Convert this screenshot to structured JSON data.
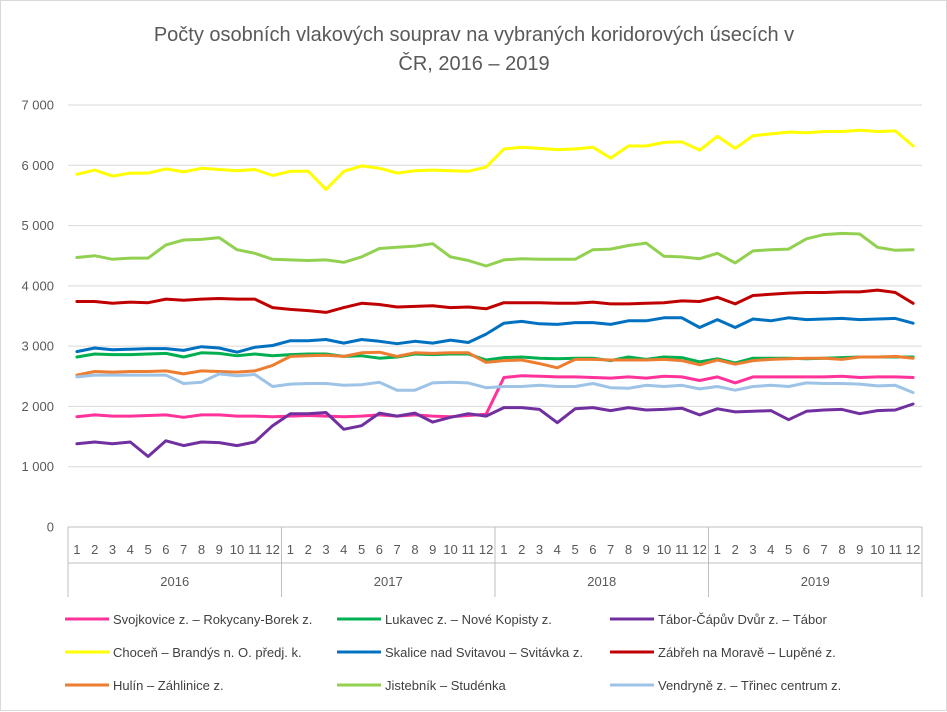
{
  "chart_data": {
    "type": "line",
    "title_lines": [
      "Počty osobních vlakových souprav na vybraných koridorových úsecích v",
      "ČR, 2016 – 2019"
    ],
    "xlabel": "",
    "ylabel": "",
    "ylim": [
      0,
      7000
    ],
    "yticks": [
      0,
      1000,
      2000,
      3000,
      4000,
      5000,
      6000,
      7000
    ],
    "ytick_labels": [
      "0",
      "1 000",
      "2 000",
      "3 000",
      "4 000",
      "5 000",
      "6 000",
      "7 000"
    ],
    "months": [
      "1",
      "2",
      "3",
      "4",
      "5",
      "6",
      "7",
      "8",
      "9",
      "10",
      "11",
      "12",
      "1",
      "2",
      "3",
      "4",
      "5",
      "6",
      "7",
      "8",
      "9",
      "10",
      "11",
      "12",
      "1",
      "2",
      "3",
      "4",
      "5",
      "6",
      "7",
      "8",
      "9",
      "10",
      "11",
      "12",
      "1",
      "2",
      "3",
      "4",
      "5",
      "6",
      "7",
      "8",
      "9",
      "10",
      "11",
      "12"
    ],
    "years": [
      "2016",
      "2017",
      "2018",
      "2019"
    ],
    "grid": true,
    "legend_position": "bottom",
    "series": [
      {
        "name": "Svojkovice z. – Rokycany-Borek z.",
        "color": "#ff3399",
        "values": [
          1830,
          1860,
          1840,
          1840,
          1850,
          1860,
          1820,
          1860,
          1860,
          1840,
          1840,
          1830,
          1840,
          1850,
          1840,
          1830,
          1840,
          1860,
          1840,
          1860,
          1840,
          1830,
          1850,
          1870,
          2480,
          2510,
          2500,
          2490,
          2490,
          2480,
          2470,
          2490,
          2470,
          2500,
          2490,
          2430,
          2490,
          2390,
          2490,
          2490,
          2490,
          2490,
          2490,
          2500,
          2480,
          2490,
          2490,
          2480
        ]
      },
      {
        "name": "Lukavec z. – Nové Kopisty z.",
        "color": "#00b050",
        "values": [
          2820,
          2870,
          2860,
          2860,
          2870,
          2880,
          2820,
          2890,
          2880,
          2840,
          2870,
          2840,
          2860,
          2870,
          2870,
          2830,
          2840,
          2800,
          2820,
          2870,
          2860,
          2870,
          2870,
          2770,
          2810,
          2820,
          2800,
          2790,
          2800,
          2800,
          2760,
          2820,
          2780,
          2820,
          2810,
          2740,
          2790,
          2720,
          2800,
          2800,
          2800,
          2790,
          2800,
          2810,
          2820,
          2820,
          2820,
          2820
        ]
      },
      {
        "name": "Tábor-Čápův Dvůr z. – Tábor",
        "color": "#7030a0",
        "values": [
          1380,
          1410,
          1380,
          1410,
          1170,
          1430,
          1350,
          1410,
          1400,
          1350,
          1410,
          1680,
          1880,
          1880,
          1900,
          1620,
          1680,
          1890,
          1840,
          1890,
          1740,
          1820,
          1880,
          1840,
          1980,
          1980,
          1950,
          1730,
          1960,
          1980,
          1930,
          1980,
          1940,
          1950,
          1970,
          1860,
          1960,
          1910,
          1920,
          1930,
          1780,
          1920,
          1940,
          1950,
          1880,
          1930,
          1940,
          2040
        ]
      },
      {
        "name": "Choceň – Brandýs n. O. předj. k.",
        "color": "#ffff00",
        "values": [
          5850,
          5920,
          5820,
          5870,
          5870,
          5940,
          5890,
          5950,
          5930,
          5910,
          5930,
          5830,
          5900,
          5900,
          5600,
          5900,
          5990,
          5950,
          5870,
          5910,
          5920,
          5910,
          5900,
          5970,
          6270,
          6300,
          6280,
          6260,
          6270,
          6300,
          6120,
          6320,
          6320,
          6380,
          6390,
          6250,
          6480,
          6280,
          6490,
          6520,
          6550,
          6540,
          6560,
          6560,
          6580,
          6560,
          6570,
          6320
        ]
      },
      {
        "name": "Skalice nad Svitavou – Svitávka z.",
        "color": "#0070c0",
        "values": [
          2910,
          2970,
          2940,
          2950,
          2960,
          2960,
          2930,
          2990,
          2970,
          2900,
          2980,
          3010,
          3090,
          3090,
          3110,
          3050,
          3110,
          3080,
          3040,
          3080,
          3050,
          3100,
          3060,
          3200,
          3380,
          3410,
          3370,
          3360,
          3390,
          3390,
          3360,
          3420,
          3420,
          3470,
          3470,
          3310,
          3440,
          3310,
          3450,
          3420,
          3470,
          3440,
          3450,
          3460,
          3440,
          3450,
          3460,
          3380
        ]
      },
      {
        "name": "Zábřeh na Moravě – Lupěné z.",
        "color": "#c00000",
        "values": [
          3740,
          3740,
          3710,
          3730,
          3720,
          3780,
          3760,
          3780,
          3790,
          3780,
          3780,
          3640,
          3610,
          3590,
          3560,
          3640,
          3710,
          3690,
          3650,
          3660,
          3670,
          3640,
          3650,
          3620,
          3720,
          3720,
          3720,
          3710,
          3710,
          3730,
          3700,
          3700,
          3710,
          3720,
          3750,
          3740,
          3810,
          3700,
          3840,
          3860,
          3880,
          3890,
          3890,
          3900,
          3900,
          3930,
          3890,
          3710
        ]
      },
      {
        "name": "Hulín – Záhlinice z.",
        "color": "#ed7d31",
        "values": [
          2520,
          2580,
          2570,
          2580,
          2580,
          2590,
          2540,
          2590,
          2580,
          2570,
          2590,
          2680,
          2830,
          2840,
          2850,
          2830,
          2890,
          2900,
          2830,
          2890,
          2880,
          2890,
          2890,
          2730,
          2760,
          2770,
          2710,
          2640,
          2780,
          2780,
          2770,
          2770,
          2770,
          2780,
          2760,
          2690,
          2770,
          2700,
          2760,
          2780,
          2790,
          2800,
          2800,
          2780,
          2820,
          2820,
          2830,
          2800
        ]
      },
      {
        "name": "Jistebník – Studénka",
        "color": "#92d050",
        "values": [
          4470,
          4500,
          4440,
          4460,
          4460,
          4680,
          4760,
          4770,
          4800,
          4600,
          4540,
          4440,
          4430,
          4420,
          4430,
          4390,
          4480,
          4620,
          4640,
          4660,
          4700,
          4480,
          4420,
          4330,
          4430,
          4450,
          4440,
          4440,
          4440,
          4600,
          4610,
          4670,
          4710,
          4490,
          4480,
          4450,
          4540,
          4380,
          4580,
          4600,
          4610,
          4780,
          4850,
          4870,
          4860,
          4640,
          4590,
          4600
        ]
      },
      {
        "name": "Vendryně z. – Třinec centrum z.",
        "color": "#9dc3e6",
        "values": [
          2490,
          2520,
          2520,
          2520,
          2520,
          2520,
          2380,
          2400,
          2540,
          2510,
          2530,
          2330,
          2370,
          2380,
          2380,
          2350,
          2360,
          2400,
          2270,
          2270,
          2390,
          2400,
          2390,
          2310,
          2330,
          2330,
          2350,
          2330,
          2330,
          2380,
          2310,
          2300,
          2350,
          2330,
          2350,
          2290,
          2330,
          2270,
          2330,
          2350,
          2330,
          2390,
          2380,
          2380,
          2370,
          2340,
          2350,
          2230
        ]
      }
    ]
  }
}
